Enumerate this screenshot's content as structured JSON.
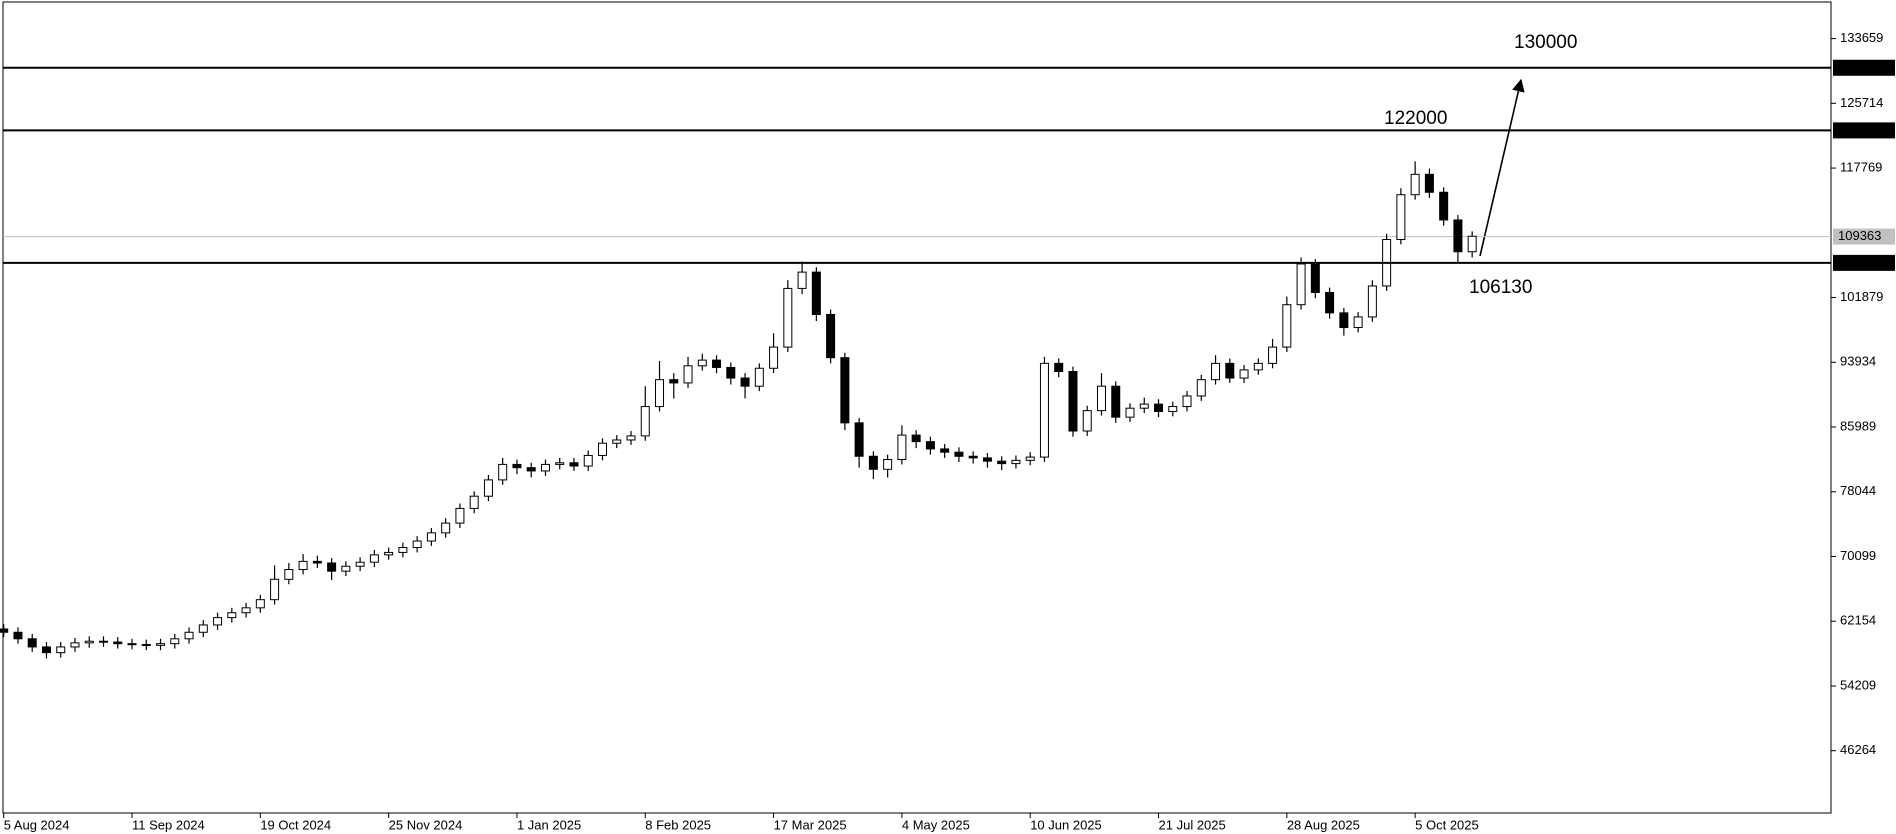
{
  "chart_data": {
    "type": "candlestick",
    "categories": [
      "5 Aug 2024",
      null,
      null,
      null,
      null,
      null,
      null,
      null,
      null,
      "11 Sep 2024",
      null,
      null,
      null,
      null,
      null,
      null,
      null,
      null,
      "19 Oct 2024",
      null,
      null,
      null,
      null,
      null,
      null,
      null,
      null,
      "25 Nov 2024",
      null,
      null,
      null,
      null,
      null,
      null,
      null,
      null,
      "1 Jan 2025",
      null,
      null,
      null,
      null,
      null,
      null,
      null,
      null,
      "8 Feb 2025",
      null,
      null,
      null,
      null,
      null,
      null,
      null,
      null,
      "17 Mar 2025",
      null,
      null,
      null,
      null,
      null,
      null,
      null,
      null,
      "4 May 2025",
      null,
      null,
      null,
      null,
      null,
      null,
      null,
      null,
      "10 Jun 2025",
      null,
      null,
      null,
      null,
      null,
      null,
      null,
      null,
      "21 Jul 2025",
      null,
      null,
      null,
      null,
      null,
      null,
      null,
      null,
      "28 Aug 2025",
      null,
      null,
      null,
      null,
      null,
      null,
      null,
      null,
      "5 Oct 2025",
      null,
      null,
      null,
      null
    ],
    "open": [
      61200,
      60800,
      60000,
      59000,
      58300,
      59000,
      59500,
      59700,
      59600,
      59400,
      59300,
      59200,
      59400,
      60000,
      60800,
      61700,
      62600,
      63200,
      63800,
      64800,
      67300,
      68500,
      69500,
      69300,
      68300,
      68900,
      69400,
      70300,
      70600,
      71200,
      72000,
      73000,
      74200,
      76000,
      77500,
      79500,
      81400,
      81000,
      80600,
      81400,
      81600,
      81200,
      82500,
      84000,
      84400,
      84900,
      88500,
      91800,
      91400,
      93500,
      94200,
      93300,
      92000,
      91000,
      93200,
      95800,
      103000,
      105000,
      99800,
      94500,
      86500,
      82400,
      80800,
      82000,
      85000,
      84200,
      83300,
      82900,
      82400,
      82200,
      81800,
      81500,
      81900,
      82300,
      93800,
      92800,
      85500,
      88000,
      91000,
      87200,
      88300,
      88800,
      87900,
      88500,
      89800,
      91800,
      93800,
      92000,
      93000,
      93800,
      95800,
      101000,
      106000,
      102500,
      100000,
      98200,
      99500,
      103300,
      109000,
      114500,
      117000,
      114800,
      111400,
      107500
    ],
    "high": [
      61800,
      61400,
      60600,
      59600,
      59600,
      60100,
      60300,
      60300,
      60200,
      60000,
      59900,
      60000,
      60600,
      61400,
      62300,
      63200,
      63800,
      64400,
      65400,
      69000,
      69300,
      70400,
      70200,
      69900,
      69500,
      70000,
      70900,
      71200,
      71800,
      72600,
      73600,
      74800,
      76600,
      78100,
      80100,
      82200,
      82000,
      81600,
      82000,
      82200,
      82200,
      83100,
      84600,
      85000,
      85500,
      91000,
      94100,
      92600,
      94600,
      95000,
      94800,
      93900,
      92600,
      93800,
      97500,
      104000,
      106300,
      105600,
      100400,
      95100,
      87100,
      83000,
      82600,
      86200,
      85600,
      84800,
      83900,
      83500,
      83000,
      82800,
      82400,
      82500,
      82900,
      94600,
      94400,
      93400,
      88600,
      92600,
      91600,
      88900,
      89600,
      89400,
      89100,
      90400,
      92400,
      94800,
      94400,
      93600,
      94400,
      96800,
      102000,
      106800,
      106600,
      103100,
      100600,
      100100,
      104000,
      109700,
      115300,
      118600,
      117700,
      115400,
      112000,
      110000
    ],
    "low": [
      60200,
      59400,
      58400,
      57600,
      57700,
      58400,
      58900,
      59000,
      58800,
      58700,
      58600,
      58600,
      58800,
      59400,
      60200,
      61100,
      62000,
      62600,
      63200,
      64200,
      66700,
      67900,
      68700,
      67200,
      67700,
      68300,
      68800,
      69700,
      70000,
      70600,
      71400,
      72400,
      73600,
      75400,
      76900,
      78900,
      80200,
      79800,
      80000,
      80800,
      80600,
      80600,
      81900,
      83400,
      83800,
      84300,
      87900,
      89500,
      90800,
      92900,
      92600,
      91200,
      89500,
      90400,
      92600,
      95200,
      102300,
      99000,
      93800,
      85600,
      81000,
      79600,
      79800,
      81400,
      83400,
      82600,
      82200,
      81700,
      81500,
      81000,
      80700,
      80900,
      81300,
      81700,
      92100,
      84800,
      84900,
      87400,
      86500,
      86600,
      87700,
      87200,
      87300,
      87900,
      89200,
      91200,
      91400,
      91400,
      92400,
      93200,
      95200,
      100400,
      101800,
      99300,
      97200,
      97600,
      98900,
      102700,
      108400,
      113900,
      114100,
      110700,
      106200,
      106800
    ],
    "close": [
      60800,
      60000,
      59000,
      58300,
      59000,
      59500,
      59700,
      59600,
      59400,
      59300,
      59200,
      59400,
      60000,
      60800,
      61700,
      62600,
      63200,
      63800,
      64800,
      67300,
      68500,
      69500,
      69300,
      68300,
      68900,
      69400,
      70300,
      70600,
      71200,
      72000,
      73000,
      74200,
      76000,
      77500,
      79500,
      81400,
      81000,
      80600,
      81400,
      81600,
      81200,
      82500,
      84000,
      84400,
      84900,
      88500,
      91800,
      91400,
      93500,
      94200,
      93300,
      92000,
      91000,
      93200,
      95800,
      103000,
      105000,
      99800,
      94500,
      86500,
      82400,
      80800,
      82000,
      85000,
      84200,
      83300,
      82900,
      82400,
      82200,
      81800,
      81500,
      81900,
      82300,
      93800,
      92800,
      85500,
      88000,
      91000,
      87200,
      88300,
      88800,
      87900,
      88500,
      89800,
      91800,
      93800,
      92000,
      93000,
      93800,
      95800,
      101000,
      106000,
      102500,
      100000,
      98200,
      99500,
      103300,
      109000,
      114500,
      117000,
      114800,
      111400,
      107500,
      109400
    ],
    "up_color": "#ffffff",
    "down_color": "#000000",
    "ylim": [
      38620,
      138150
    ],
    "yticks": [
      46264,
      54209,
      62154,
      70099,
      78044,
      85989,
      93934,
      101879,
      117769,
      125714,
      133659
    ],
    "levels": [
      130078,
      122392,
      106135
    ],
    "current_price": 109363,
    "annotations": [
      "130000",
      "122000",
      "106130"
    ]
  }
}
